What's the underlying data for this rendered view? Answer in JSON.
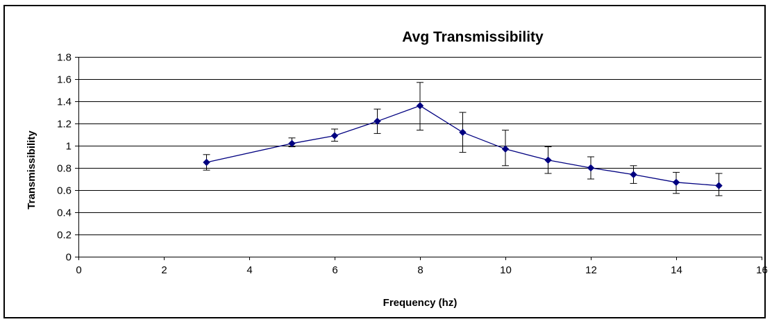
{
  "chart_data": {
    "type": "scatter",
    "title": "Avg Transmissibility",
    "xlabel": "Frequency (hz)",
    "ylabel": "Transmissibility",
    "xlim": [
      0,
      16
    ],
    "ylim": [
      0,
      1.8
    ],
    "x_ticks": [
      0,
      2,
      4,
      6,
      8,
      10,
      12,
      14,
      16
    ],
    "y_ticks": [
      0,
      0.2,
      0.4,
      0.6,
      0.8,
      1,
      1.2,
      1.4,
      1.6,
      1.8
    ],
    "x_tick_labels": [
      "0",
      "2",
      "4",
      "6",
      "8",
      "10",
      "12",
      "14",
      "16"
    ],
    "y_tick_labels": [
      "0",
      "0.2",
      "0.4",
      "0.6",
      "0.8",
      "1",
      "1.2",
      "1.4",
      "1.6",
      "1.8"
    ],
    "grid": "horizontal",
    "series": [
      {
        "x": [
          3,
          5,
          6,
          7,
          8,
          9,
          10,
          11,
          12,
          13,
          14,
          15
        ],
        "y": [
          0.85,
          1.02,
          1.09,
          1.22,
          1.36,
          1.12,
          0.97,
          0.87,
          0.8,
          0.74,
          0.67,
          0.64
        ],
        "error_low": [
          0.78,
          0.99,
          1.04,
          1.11,
          1.14,
          0.94,
          0.82,
          0.75,
          0.7,
          0.66,
          0.57,
          0.55
        ],
        "error_high": [
          0.92,
          1.07,
          1.15,
          1.33,
          1.57,
          1.3,
          1.14,
          0.99,
          0.9,
          0.82,
          0.76,
          0.75
        ],
        "color": "#000080",
        "marker": "diamond"
      }
    ]
  }
}
